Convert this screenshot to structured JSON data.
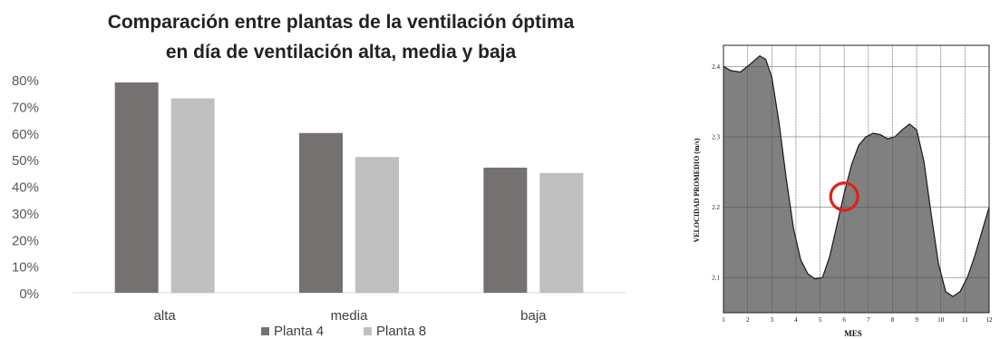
{
  "chart_data": [
    {
      "type": "bar",
      "title": "Comparación entre plantas de la ventilación óptima",
      "subtitle": "en día de ventilación alta, media y baja",
      "categories": [
        "alta",
        "media",
        "baja"
      ],
      "series": [
        {
          "name": "Planta 4",
          "color": "#767171",
          "values": [
            79,
            60,
            47
          ]
        },
        {
          "name": "Planta 8",
          "color": "#bfbfbf",
          "values": [
            73,
            51,
            45
          ]
        }
      ],
      "ylim": [
        0,
        80
      ],
      "yticks": [
        "0%",
        "10%",
        "20%",
        "30%",
        "40%",
        "50%",
        "60%",
        "70%",
        "80%"
      ],
      "grid": false,
      "legend": "bottom"
    },
    {
      "type": "area",
      "xlabel": "MES",
      "ylabel": "VELOCIDAD PROMEDIO (m/s)",
      "xlim": [
        1,
        12
      ],
      "ylim": [
        2.05,
        2.43
      ],
      "xticks": [
        "1",
        "2",
        "3",
        "4",
        "5",
        "6",
        "7",
        "8",
        "9",
        "10",
        "11",
        "12"
      ],
      "yticks": [
        "2.1",
        "2.2",
        "2.3",
        "2.4"
      ],
      "grid": true,
      "fill_color": "#808080",
      "annotation": {
        "shape": "circle",
        "color": "#e0201b",
        "x": 6,
        "y": 2.215
      },
      "points": [
        [
          1.0,
          2.4
        ],
        [
          1.3,
          2.394
        ],
        [
          1.7,
          2.392
        ],
        [
          2.1,
          2.403
        ],
        [
          2.5,
          2.415
        ],
        [
          2.75,
          2.41
        ],
        [
          3.0,
          2.385
        ],
        [
          3.3,
          2.32
        ],
        [
          3.6,
          2.24
        ],
        [
          3.9,
          2.17
        ],
        [
          4.2,
          2.125
        ],
        [
          4.5,
          2.105
        ],
        [
          4.8,
          2.098
        ],
        [
          5.1,
          2.1
        ],
        [
          5.4,
          2.13
        ],
        [
          5.7,
          2.175
        ],
        [
          6.0,
          2.22
        ],
        [
          6.3,
          2.26
        ],
        [
          6.6,
          2.288
        ],
        [
          6.9,
          2.3
        ],
        [
          7.2,
          2.305
        ],
        [
          7.5,
          2.303
        ],
        [
          7.8,
          2.297
        ],
        [
          8.1,
          2.3
        ],
        [
          8.4,
          2.31
        ],
        [
          8.7,
          2.318
        ],
        [
          9.0,
          2.31
        ],
        [
          9.3,
          2.265
        ],
        [
          9.6,
          2.19
        ],
        [
          9.9,
          2.12
        ],
        [
          10.2,
          2.08
        ],
        [
          10.5,
          2.073
        ],
        [
          10.8,
          2.08
        ],
        [
          11.1,
          2.1
        ],
        [
          11.4,
          2.13
        ],
        [
          11.7,
          2.165
        ],
        [
          12.0,
          2.2
        ]
      ]
    }
  ]
}
